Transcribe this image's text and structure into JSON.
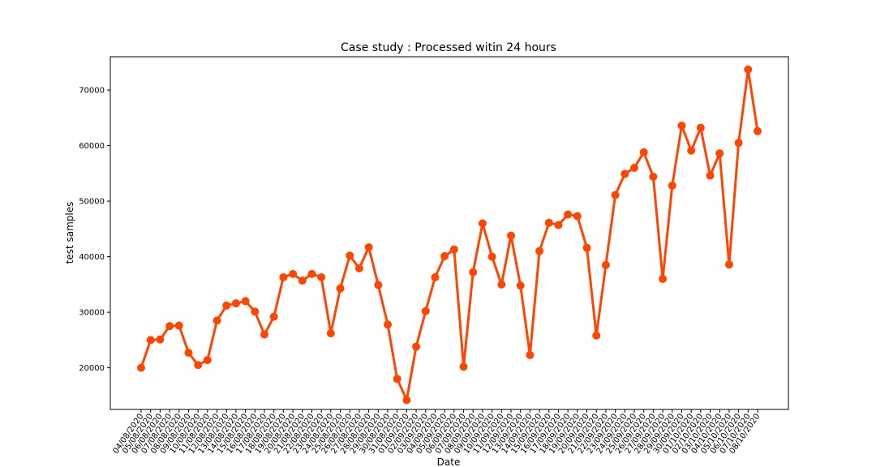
{
  "chart_data": {
    "type": "line",
    "title": "Case study : Processed witin 24 hours",
    "xlabel": "Date",
    "ylabel": "test samples",
    "ylim": [
      12500,
      76000
    ],
    "yticks": [
      20000,
      30000,
      40000,
      50000,
      60000,
      70000
    ],
    "grid": false,
    "colors": {
      "line": "#ff4500",
      "marker": "#ff4500"
    },
    "categories": [
      "04/08/2020",
      "05/08/2020",
      "06/08/2020",
      "07/08/2020",
      "08/08/2020",
      "09/08/2020",
      "10/08/2020",
      "11/08/2020",
      "12/08/2020",
      "13/08/2020",
      "14/08/2020",
      "15/08/2020",
      "16/08/2020",
      "17/08/2020",
      "18/08/2020",
      "19/08/2020",
      "20/08/2020",
      "21/08/2020",
      "22/08/2020",
      "23/08/2020",
      "24/08/2020",
      "25/08/2020",
      "26/08/2020",
      "27/08/2020",
      "28/08/2020",
      "29/08/2020",
      "30/08/2020",
      "31/08/2020",
      "01/09/2020",
      "02/09/2020",
      "03/09/2020",
      "04/09/2020",
      "05/09/2020",
      "06/09/2020",
      "07/09/2020",
      "08/09/2020",
      "09/09/2020",
      "10/09/2020",
      "11/09/2020",
      "12/09/2020",
      "13/09/2020",
      "14/09/2020",
      "15/09/2020",
      "16/09/2020",
      "17/09/2020",
      "18/09/2020",
      "19/09/2020",
      "20/09/2020",
      "21/09/2020",
      "22/09/2020",
      "23/09/2020",
      "24/09/2020",
      "25/09/2020",
      "26/09/2020",
      "27/09/2020",
      "28/09/2020",
      "29/09/2020",
      "30/09/2020",
      "01/10/2020",
      "02/10/2020",
      "03/10/2020",
      "04/10/2020",
      "05/10/2020",
      "06/10/2020",
      "07/10/2020",
      "08/10/2020"
    ],
    "values": [
      20000,
      25000,
      25100,
      27500,
      27600,
      22700,
      20500,
      21400,
      28500,
      31200,
      31600,
      32000,
      30100,
      26000,
      29200,
      36300,
      36900,
      35700,
      36900,
      36300,
      26200,
      34300,
      40200,
      37900,
      41700,
      34900,
      27800,
      18000,
      14200,
      23800,
      30200,
      36300,
      40100,
      41300,
      20200,
      37200,
      46000,
      40000,
      35000,
      43800,
      34800,
      22300,
      41000,
      46100,
      45700,
      47600,
      47300,
      41600,
      25800,
      38500,
      51100,
      54900,
      56000,
      58800,
      54400,
      36000,
      52800,
      63600,
      59100,
      63200,
      54600,
      58600,
      38600,
      60500,
      73700,
      62600
    ]
  }
}
